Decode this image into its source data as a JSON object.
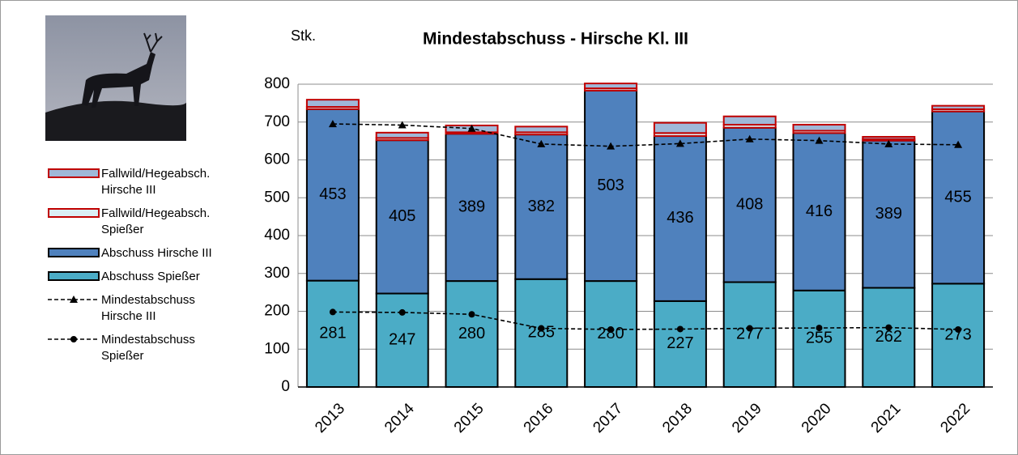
{
  "chart_data": {
    "type": "bar",
    "title": "Mindestabschuss - Hirsche  Kl. III",
    "y_label": "Stk.",
    "categories": [
      "2013",
      "2014",
      "2015",
      "2016",
      "2017",
      "2018",
      "2019",
      "2020",
      "2021",
      "2022"
    ],
    "ylim": [
      0,
      800
    ],
    "yticks": [
      0,
      100,
      200,
      300,
      400,
      500,
      600,
      700,
      800
    ],
    "grid": true,
    "legend": "left",
    "series": [
      {
        "name": "Abschuss Spießer",
        "type": "bar",
        "color": "#4bacc6",
        "edge": "#000000",
        "show_values": true,
        "values": [
          281,
          247,
          280,
          285,
          280,
          227,
          277,
          255,
          262,
          273
        ]
      },
      {
        "name": "Abschuss Hirsche III",
        "type": "bar",
        "color": "#4f81bd",
        "edge": "#000000",
        "show_values": true,
        "values": [
          453,
          405,
          389,
          382,
          503,
          436,
          408,
          416,
          389,
          455
        ]
      },
      {
        "name": "Fallwild/Hegeabsch. Spießer",
        "type": "bar",
        "color": "#dbeef4",
        "edge": "#c00000",
        "show_values": false,
        "values": [
          6,
          6,
          4,
          6,
          6,
          8,
          8,
          6,
          4,
          6
        ]
      },
      {
        "name": "Fallwild/Hegeabsch. Hirsche III",
        "type": "bar",
        "color": "#9fb8d8",
        "edge": "#c00000",
        "show_values": false,
        "values": [
          19,
          14,
          18,
          15,
          13,
          27,
          22,
          16,
          6,
          9
        ]
      },
      {
        "name": "Mindestabschuss Hirsche III",
        "type": "line",
        "marker": "triangle",
        "color": "#000000",
        "values": [
          695,
          692,
          683,
          642,
          636,
          643,
          655,
          651,
          642,
          640
        ]
      },
      {
        "name": "Mindestabschuss Spießer",
        "type": "line",
        "marker": "circle",
        "color": "#000000",
        "values": [
          198,
          197,
          192,
          155,
          152,
          153,
          155,
          156,
          157,
          152
        ]
      }
    ]
  }
}
